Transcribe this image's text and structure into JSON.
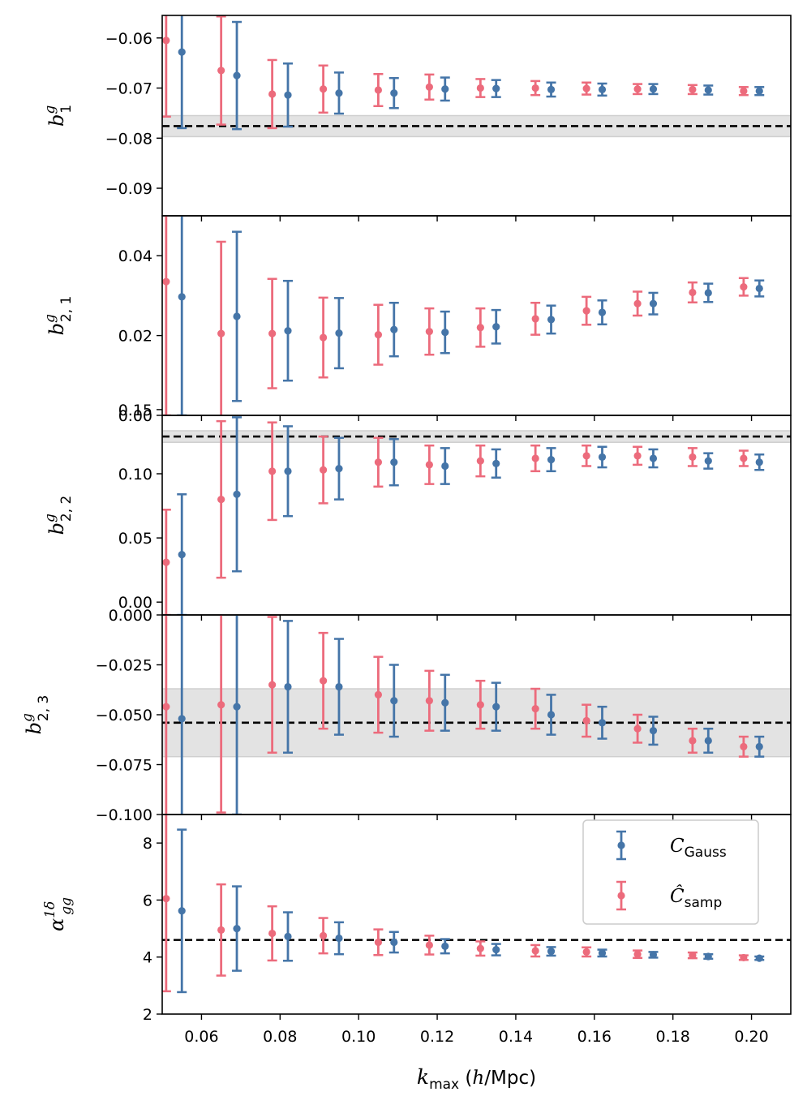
{
  "colors": {
    "gauss": "#4575a8",
    "samp": "#ec6b7c",
    "band": "#e3e3e3",
    "reference": "#000000"
  },
  "chart_data": {
    "type": "errorbar",
    "xlabel_parts": {
      "k": "k",
      "sub": "max",
      "unit_open": " (",
      "h": "h",
      "unit_close": "/Mpc)"
    },
    "xlim": [
      0.05,
      0.21
    ],
    "xticks": [
      0.06,
      0.08,
      0.1,
      0.12,
      0.14,
      0.16,
      0.18,
      0.2
    ],
    "xtick_labels": [
      "0.06",
      "0.08",
      "0.10",
      "0.12",
      "0.14",
      "0.16",
      "0.18",
      "0.20"
    ],
    "kmax": [
      0.053,
      0.067,
      0.08,
      0.093,
      0.107,
      0.12,
      0.133,
      0.147,
      0.16,
      0.173,
      0.187,
      0.2
    ],
    "x_offset_gauss": 0.002,
    "x_offset_samp": -0.002,
    "legend": [
      {
        "key": "gauss",
        "sym": "C",
        "sub": "Gauss"
      },
      {
        "key": "samp",
        "sym": "Ĉ",
        "sub": "samp"
      }
    ],
    "panels": [
      {
        "id": "b1",
        "ylabel": {
          "main": "b",
          "sup": "g",
          "sub": "1"
        },
        "ylim": [
          -0.0955,
          -0.0555
        ],
        "yticks": [
          -0.06,
          -0.07,
          -0.08,
          -0.09
        ],
        "ytick_labels": [
          "−0.06",
          "−0.07",
          "−0.08",
          "−0.09"
        ],
        "reference": -0.0776,
        "band": [
          -0.0797,
          -0.0755
        ],
        "samp": {
          "y": [
            -0.0605,
            -0.0665,
            -0.0712,
            -0.0702,
            -0.0704,
            -0.0698,
            -0.07,
            -0.07,
            -0.0701,
            -0.0702,
            -0.0703,
            -0.0706
          ],
          "err": [
            0.0152,
            0.0108,
            0.0068,
            0.0047,
            0.0032,
            0.0025,
            0.0018,
            0.0014,
            0.0012,
            0.001,
            0.0009,
            0.0008
          ]
        },
        "gauss": {
          "y": [
            -0.0628,
            -0.0675,
            -0.0714,
            -0.071,
            -0.071,
            -0.0702,
            -0.0701,
            -0.0703,
            -0.0703,
            -0.0702,
            -0.0704,
            -0.0706
          ],
          "err": [
            0.0152,
            0.0107,
            0.0063,
            0.0041,
            0.003,
            0.0023,
            0.0017,
            0.0014,
            0.0012,
            0.001,
            0.0009,
            0.0008
          ]
        }
      },
      {
        "id": "b21",
        "ylabel": {
          "main": "b",
          "sup": "g",
          "sub": "2, 1"
        },
        "ylim": [
          0.0,
          0.05
        ],
        "yticks": [
          0.0,
          0.02,
          0.04
        ],
        "ytick_labels": [
          "0.00",
          "0.02",
          "0.04"
        ],
        "samp": {
          "y": [
            0.0335,
            0.0205,
            0.0205,
            0.0195,
            0.0202,
            0.021,
            0.022,
            0.0242,
            0.0262,
            0.028,
            0.0308,
            0.0322
          ],
          "err": [
            0.0335,
            0.023,
            0.0137,
            0.01,
            0.0075,
            0.0058,
            0.0048,
            0.004,
            0.0035,
            0.003,
            0.0025,
            0.0022
          ]
        },
        "gauss": {
          "y": [
            0.0297,
            0.0248,
            0.0212,
            0.0206,
            0.0215,
            0.0208,
            0.0222,
            0.024,
            0.0258,
            0.028,
            0.0307,
            0.0318
          ],
          "err": [
            0.0297,
            0.0212,
            0.0125,
            0.0088,
            0.0067,
            0.0052,
            0.0042,
            0.0035,
            0.003,
            0.0027,
            0.0023,
            0.002
          ]
        }
      },
      {
        "id": "b22",
        "ylabel": {
          "main": "b",
          "sup": "g",
          "sub": "2, 2"
        },
        "ylim": [
          -0.01,
          0.1455
        ],
        "yticks": [
          0.0,
          0.05,
          0.1,
          0.15
        ],
        "ytick_labels": [
          "0.00",
          "0.05",
          "0.10",
          "0.15"
        ],
        "reference": 0.129,
        "band": [
          0.1245,
          0.1335
        ],
        "samp": {
          "y": [
            0.031,
            0.08,
            0.102,
            0.103,
            0.109,
            0.107,
            0.11,
            0.112,
            0.114,
            0.114,
            0.113,
            0.112
          ],
          "err": [
            0.041,
            0.061,
            0.038,
            0.026,
            0.019,
            0.015,
            0.012,
            0.01,
            0.008,
            0.007,
            0.007,
            0.006
          ]
        },
        "gauss": {
          "y": [
            0.037,
            0.084,
            0.102,
            0.104,
            0.109,
            0.106,
            0.108,
            0.111,
            0.113,
            0.112,
            0.11,
            0.109
          ],
          "err": [
            0.047,
            0.06,
            0.035,
            0.024,
            0.018,
            0.014,
            0.011,
            0.009,
            0.008,
            0.007,
            0.006,
            0.006
          ]
        }
      },
      {
        "id": "b23",
        "ylabel": {
          "main": "b",
          "sup": "g",
          "sub": "2, 3"
        },
        "ylim": [
          -0.1,
          0.0
        ],
        "yticks": [
          0.0,
          -0.025,
          -0.05,
          -0.075,
          -0.1
        ],
        "ytick_labels": [
          "0.000",
          "−0.025",
          "−0.050",
          "−0.075",
          "−0.100"
        ],
        "reference": -0.054,
        "band": [
          -0.071,
          -0.037
        ],
        "samp": {
          "y": [
            -0.046,
            -0.045,
            -0.035,
            -0.033,
            -0.04,
            -0.043,
            -0.045,
            -0.047,
            -0.053,
            -0.057,
            -0.063,
            -0.066
          ],
          "err": [
            0.06,
            0.054,
            0.034,
            0.024,
            0.019,
            0.015,
            0.012,
            0.01,
            0.008,
            0.007,
            0.006,
            0.005
          ]
        },
        "gauss": {
          "y": [
            -0.052,
            -0.046,
            -0.036,
            -0.036,
            -0.043,
            -0.044,
            -0.046,
            -0.05,
            -0.054,
            -0.058,
            -0.063,
            -0.066
          ],
          "err": [
            0.06,
            0.054,
            0.033,
            0.024,
            0.018,
            0.014,
            0.012,
            0.01,
            0.008,
            0.007,
            0.006,
            0.005
          ]
        }
      },
      {
        "id": "alpha",
        "ylabel": {
          "main": "α",
          "sup": "1δ",
          "sub": "gg"
        },
        "ylim": [
          2.0,
          9.0
        ],
        "yticks": [
          2,
          4,
          6,
          8
        ],
        "ytick_labels": [
          "2",
          "4",
          "6",
          "8"
        ],
        "reference": 4.6,
        "samp": {
          "y": [
            6.05,
            4.95,
            4.83,
            4.75,
            4.52,
            4.42,
            4.3,
            4.22,
            4.18,
            4.1,
            4.06,
            3.98
          ],
          "err": [
            3.25,
            1.6,
            0.95,
            0.62,
            0.45,
            0.33,
            0.25,
            0.2,
            0.16,
            0.13,
            0.1,
            0.08
          ]
        },
        "gauss": {
          "y": [
            5.62,
            5.0,
            4.72,
            4.66,
            4.52,
            4.38,
            4.26,
            4.2,
            4.14,
            4.08,
            4.02,
            3.96
          ],
          "err": [
            2.85,
            1.48,
            0.85,
            0.56,
            0.36,
            0.25,
            0.2,
            0.15,
            0.12,
            0.1,
            0.08,
            0.06
          ]
        }
      }
    ]
  }
}
